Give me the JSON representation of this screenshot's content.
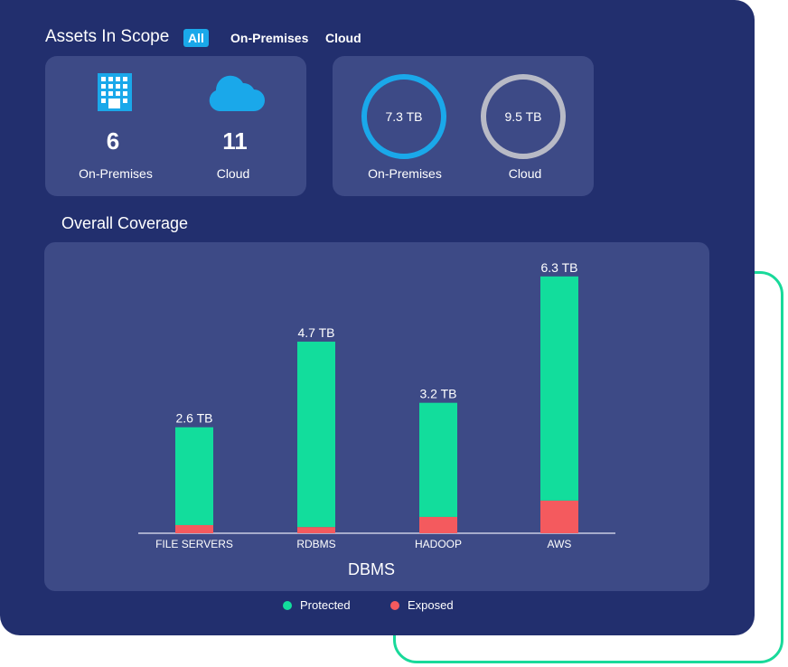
{
  "header": {
    "title": "Assets In Scope",
    "filters": [
      "All",
      "On-Premises",
      "Cloud"
    ],
    "active_filter": "All"
  },
  "asset_counts": {
    "on_premises": {
      "value": "6",
      "label": "On-Premises",
      "icon": "building-icon"
    },
    "cloud": {
      "value": "11",
      "label": "Cloud",
      "icon": "cloud-icon"
    }
  },
  "storage": {
    "on_premises": {
      "value": "7.3 TB",
      "label": "On-Premises"
    },
    "cloud": {
      "value": "9.5 TB",
      "label": "Cloud"
    }
  },
  "coverage": {
    "title": "Overall Coverage"
  },
  "colors": {
    "protected": "#12dd9c",
    "exposed": "#f45a5e",
    "accent": "#1aa8ea",
    "ring_cloud": "#b8bac6"
  },
  "chart_data": {
    "type": "bar",
    "stacked": true,
    "xlabel": "DBMS",
    "categories": [
      "FILE SERVERS",
      "RDBMS",
      "HADOOP",
      "AWS"
    ],
    "totals": [
      2.6,
      4.7,
      3.2,
      6.3
    ],
    "total_labels": [
      "2.6 TB",
      "4.7 TB",
      "3.2 TB",
      "6.3 TB"
    ],
    "unit": "TB",
    "series": [
      {
        "name": "Protected",
        "values": [
          2.4,
          4.55,
          2.8,
          5.5
        ]
      },
      {
        "name": "Exposed",
        "values": [
          0.2,
          0.15,
          0.4,
          0.8
        ]
      }
    ],
    "legend": [
      "Protected",
      "Exposed"
    ]
  }
}
